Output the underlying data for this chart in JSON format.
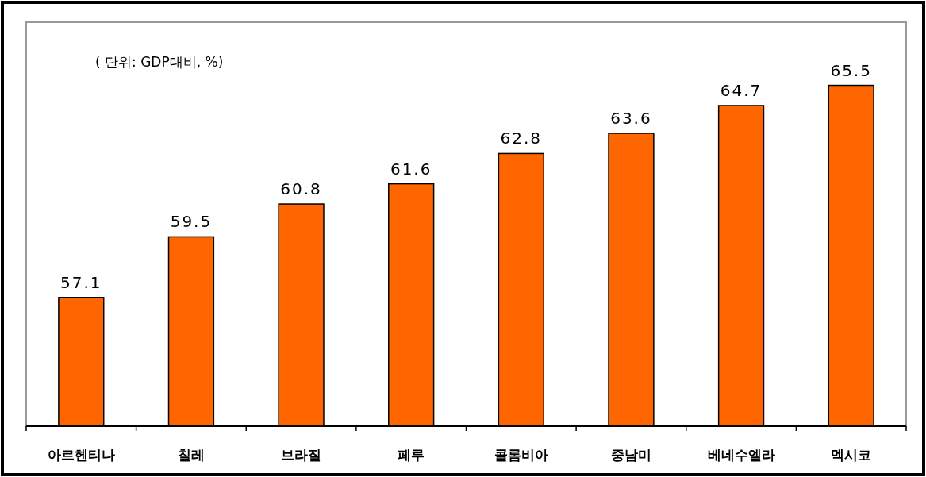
{
  "chart_data": {
    "type": "bar",
    "categories": [
      "아르헨티나",
      "칠레",
      "브라질",
      "페루",
      "콜롬비아",
      "중남미",
      "베네수엘라",
      "멕시코"
    ],
    "values": [
      57.1,
      59.5,
      60.8,
      61.6,
      62.8,
      63.6,
      64.7,
      65.5
    ],
    "color": "#ff6600",
    "ylim": [
      52,
      68
    ],
    "data_labels": true,
    "annotations": [
      "( 단위: GDP대비, %)"
    ]
  }
}
